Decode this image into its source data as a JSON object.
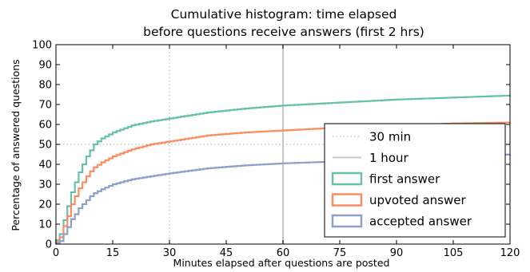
{
  "chart_data": {
    "type": "line",
    "step": true,
    "title_lines": [
      "Cumulative histogram: time elapsed",
      "before questions receive answers (first 2 hrs)"
    ],
    "xlabel": "Minutes elapsed after questions are posted",
    "ylabel": "Percentage of answered questions",
    "xlim": [
      0,
      120
    ],
    "ylim": [
      0,
      100
    ],
    "xticks": [
      0,
      15,
      30,
      45,
      60,
      75,
      90,
      105,
      120
    ],
    "yticks": [
      0,
      10,
      20,
      30,
      40,
      50,
      60,
      70,
      80,
      90,
      100
    ],
    "x": [
      0,
      1,
      2,
      3,
      4,
      5,
      6,
      7,
      8,
      9,
      10,
      12,
      15,
      20,
      25,
      30,
      40,
      50,
      60,
      75,
      90,
      105,
      120
    ],
    "series": [
      {
        "name": "first answer",
        "color": "#66c2a5",
        "values": [
          2,
          5,
          12,
          19,
          26,
          31,
          36,
          40,
          44,
          47,
          50,
          53,
          56,
          59.5,
          61.5,
          63,
          66,
          68,
          69.5,
          71,
          72.5,
          73.5,
          74.5
        ]
      },
      {
        "name": "upvoted answer",
        "color": "#fc8d62",
        "values": [
          1,
          3.5,
          9,
          14,
          20,
          24,
          28,
          31,
          34,
          36.5,
          38.5,
          41,
          44,
          47.5,
          50,
          51.5,
          54.5,
          56,
          57,
          58.5,
          59.5,
          60.5,
          61
        ]
      },
      {
        "name": "accepted answer",
        "color": "#8da0cb",
        "values": [
          0.5,
          1.5,
          5,
          8.5,
          12.5,
          15,
          18,
          20,
          22,
          24,
          25.5,
          27.5,
          30,
          32.5,
          34,
          35.5,
          38,
          39.5,
          40.5,
          41.5,
          42.5,
          43.5,
          45
        ]
      }
    ],
    "reference_lines": [
      {
        "name": "30 min",
        "orientation": "vertical",
        "x": 30,
        "style": "dotted",
        "color": "#c8c8c8"
      },
      {
        "name": "30 min",
        "orientation": "horizontal",
        "y": 50,
        "style": "dotted",
        "color": "#c8c8c8"
      },
      {
        "name": "1 hour",
        "orientation": "vertical",
        "x": 60,
        "style": "solid",
        "color": "#c8c8c8"
      }
    ],
    "legend": {
      "placement": "lower-right",
      "entries": [
        {
          "label": "30 min",
          "kind": "dotted-line",
          "color": "#c8c8c8"
        },
        {
          "label": "1 hour",
          "kind": "solid-line",
          "color": "#c8c8c8"
        },
        {
          "label": "first answer",
          "kind": "box",
          "color": "#66c2a5"
        },
        {
          "label": "upvoted answer",
          "kind": "box",
          "color": "#fc8d62"
        },
        {
          "label": "accepted answer",
          "kind": "box",
          "color": "#8da0cb"
        }
      ]
    },
    "grid": false
  }
}
